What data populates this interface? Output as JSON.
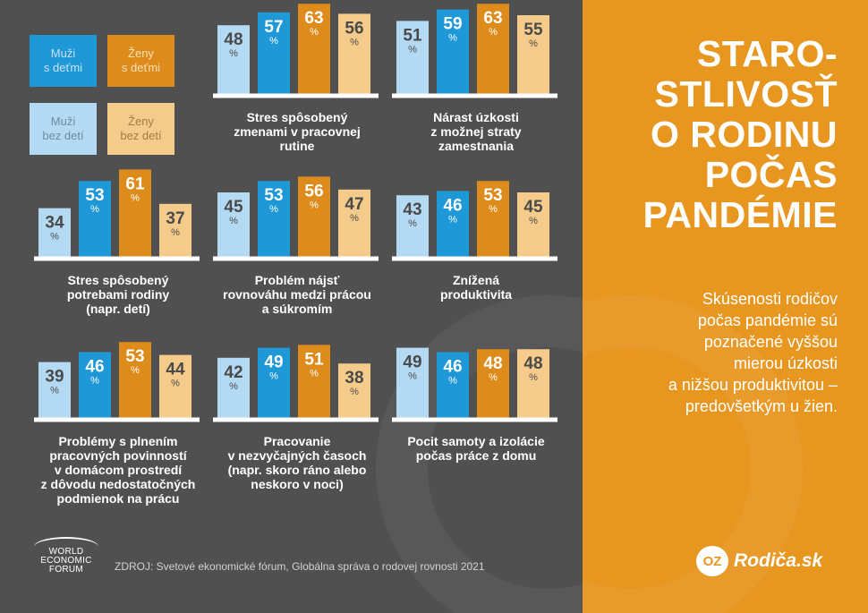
{
  "colors": {
    "left_bg": "#505050",
    "right_bg": "#e7961f",
    "men_with_kids": "#1e98d7",
    "women_with_kids": "#dd8b1b",
    "men_without_kids": "#b4d9f3",
    "women_without_kids": "#f4cb8b",
    "dark_label": "#4a4a4a",
    "light_label": "#ffffff"
  },
  "legend": [
    {
      "label_line1": "Muži",
      "label_line2": "s deťmi",
      "color": "#1e98d7",
      "text_color": "#c6e3f7"
    },
    {
      "label_line1": "Ženy",
      "label_line2": "s deťmi",
      "color": "#dd8b1b",
      "text_color": "#fbe1b3"
    },
    {
      "label_line1": "Muži",
      "label_line2": "bez detí",
      "color": "#b4d9f3",
      "text_color": "#6b8ea6"
    },
    {
      "label_line1": "Ženy",
      "label_line2": "bez detí",
      "color": "#f4cb8b",
      "text_color": "#a37c45"
    }
  ],
  "chart_data": [
    {
      "type": "bar",
      "categories": [
        "Muži bez detí",
        "Muži s deťmi",
        "Ženy s deťmi",
        "Ženy bez detí"
      ],
      "values": [
        48,
        57,
        63,
        56
      ],
      "unit": "%",
      "caption": [
        "Stres spôsobený",
        "zmenami v pracovnej",
        "rutine"
      ]
    },
    {
      "type": "bar",
      "categories": [
        "Muži bez detí",
        "Muži s deťmi",
        "Ženy s deťmi",
        "Ženy bez detí"
      ],
      "values": [
        51,
        59,
        63,
        55
      ],
      "unit": "%",
      "caption": [
        "Nárast úzkosti",
        "z možnej straty",
        "zamestnania"
      ]
    },
    {
      "type": "bar",
      "categories": [
        "Muži bez detí",
        "Muži s deťmi",
        "Ženy s deťmi",
        "Ženy bez detí"
      ],
      "values": [
        34,
        53,
        61,
        37
      ],
      "unit": "%",
      "caption": [
        "Stres spôsobený",
        "potrebami rodiny",
        "(napr. detí)"
      ]
    },
    {
      "type": "bar",
      "categories": [
        "Muži bez detí",
        "Muži s deťmi",
        "Ženy s deťmi",
        "Ženy bez detí"
      ],
      "values": [
        45,
        53,
        56,
        47
      ],
      "unit": "%",
      "caption": [
        "Problém nájsť",
        "rovnováhu medzi prácou",
        "a súkromím"
      ]
    },
    {
      "type": "bar",
      "categories": [
        "Muži bez detí",
        "Muži s deťmi",
        "Ženy s deťmi",
        "Ženy bez detí"
      ],
      "values": [
        43,
        46,
        53,
        45
      ],
      "unit": "%",
      "caption": [
        "Znížená",
        "produktivita"
      ]
    },
    {
      "type": "bar",
      "categories": [
        "Muži bez detí",
        "Muži s deťmi",
        "Ženy s deťmi",
        "Ženy bez detí"
      ],
      "values": [
        39,
        46,
        53,
        44
      ],
      "unit": "%",
      "caption": [
        "Problémy s plnením",
        "pracovných povinností",
        "v domácom prostredí",
        "z dôvodu nedostatočných",
        "podmienok na prácu"
      ]
    },
    {
      "type": "bar",
      "categories": [
        "Muži bez detí",
        "Muži s deťmi",
        "Ženy s deťmi",
        "Ženy bez detí"
      ],
      "values": [
        42,
        49,
        51,
        38
      ],
      "unit": "%",
      "caption": [
        "Pracovanie",
        "v nezvyčajných časoch",
        "(napr. skoro ráno alebo",
        "neskoro v noci)"
      ]
    },
    {
      "type": "bar",
      "categories": [
        "Muži bez detí",
        "Muži s deťmi",
        "Ženy s deťmi",
        "Ženy bez detí"
      ],
      "values": [
        49,
        46,
        48,
        48
      ],
      "unit": "%",
      "caption": [
        "Pocit samoty a izolácie",
        "počas práce z domu"
      ]
    }
  ],
  "title_lines": [
    "STARO-",
    "STLIVOSŤ",
    "O RODINU",
    "POČAS",
    "PANDÉMIE"
  ],
  "subtitle_lines": [
    "Skúsenosti rodičov",
    "počas pandémie sú",
    "poznačené vyššou",
    "mierou úzkosti",
    "a nižšou produktivitou –",
    "predovšetkým u žien."
  ],
  "source": "ZDROJ: Svetové ekonomické fórum, Globálna správa o rodovej rovnosti 2021",
  "wef_logo": {
    "lines": [
      "WORLD",
      "ECONOMIC",
      "FORUM"
    ]
  },
  "brand": {
    "mark": "OZ",
    "name": "Rodiča.sk"
  }
}
